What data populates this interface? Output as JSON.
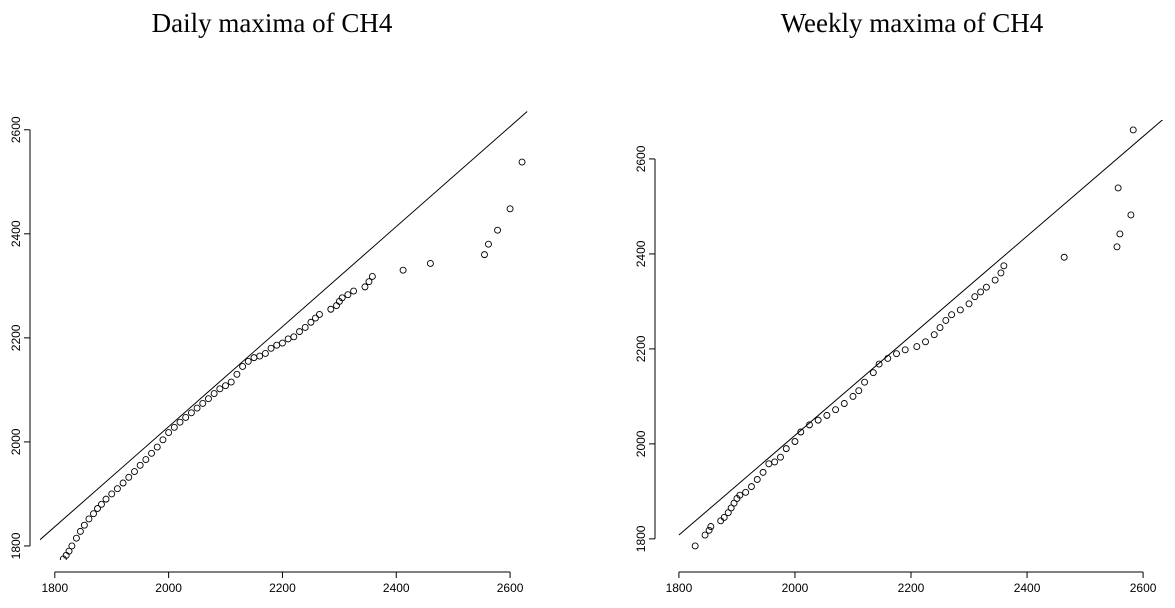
{
  "chart_data": [
    {
      "type": "scatter",
      "title": "Daily maxima of CH4",
      "color": "#000000",
      "xlim": [
        1774,
        2635
      ],
      "ylim": [
        1773,
        2638
      ],
      "xticks": [
        1800,
        2000,
        2200,
        2400,
        2600
      ],
      "yticks": [
        1800,
        2000,
        2200,
        2400,
        2600
      ],
      "reference_line": {
        "x": [
          1774,
          2630
        ],
        "y": [
          1812,
          2635
        ]
      },
      "x": [
        1815,
        1820,
        1825,
        1830,
        1838,
        1845,
        1852,
        1860,
        1868,
        1875,
        1882,
        1890,
        1900,
        1910,
        1920,
        1930,
        1940,
        1950,
        1960,
        1970,
        1980,
        1990,
        2000,
        2010,
        2020,
        2030,
        2040,
        2050,
        2060,
        2070,
        2080,
        2090,
        2100,
        2110,
        2120,
        2130,
        2140,
        2150,
        2160,
        2170,
        2180,
        2190,
        2200,
        2210,
        2220,
        2230,
        2240,
        2250,
        2258,
        2265,
        2285,
        2295,
        2300,
        2305,
        2315,
        2325,
        2345,
        2352,
        2358,
        2412,
        2460,
        2555,
        2562,
        2578,
        2600,
        2621
      ],
      "values": [
        1775,
        1782,
        1790,
        1800,
        1815,
        1828,
        1840,
        1852,
        1862,
        1872,
        1880,
        1890,
        1900,
        1910,
        1921,
        1932,
        1943,
        1955,
        1966,
        1978,
        1990,
        2004,
        2018,
        2028,
        2038,
        2047,
        2056,
        2065,
        2074,
        2083,
        2093,
        2102,
        2108,
        2115,
        2130,
        2145,
        2155,
        2162,
        2165,
        2170,
        2180,
        2186,
        2190,
        2198,
        2202,
        2212,
        2220,
        2230,
        2238,
        2245,
        2255,
        2262,
        2270,
        2277,
        2283,
        2290,
        2298,
        2308,
        2318,
        2330,
        2343,
        2360,
        2380,
        2407,
        2448,
        2538
      ]
    },
    {
      "type": "scatter",
      "title": "Weekly maxima of CH4",
      "color": "#000000",
      "xlim": [
        1776,
        2655
      ],
      "ylim": [
        1766,
        2682
      ],
      "xticks": [
        1800,
        2000,
        2200,
        2400,
        2600
      ],
      "yticks": [
        1800,
        2000,
        2200,
        2400,
        2600
      ],
      "reference_line": {
        "x": [
          1800,
          2655
        ],
        "y": [
          1808,
          2705
        ]
      },
      "x": [
        1828,
        1845,
        1852,
        1855,
        1872,
        1878,
        1885,
        1890,
        1895,
        1900,
        1905,
        1915,
        1925,
        1935,
        1945,
        1955,
        1965,
        1975,
        1985,
        2000,
        2010,
        2025,
        2040,
        2055,
        2070,
        2085,
        2100,
        2110,
        2120,
        2135,
        2145,
        2160,
        2175,
        2190,
        2210,
        2225,
        2240,
        2250,
        2260,
        2270,
        2285,
        2300,
        2310,
        2320,
        2330,
        2345,
        2355,
        2360,
        2464,
        2555,
        2560,
        2579,
        2557,
        2583
      ],
      "values": [
        1785,
        1808,
        1818,
        1826,
        1838,
        1845,
        1855,
        1865,
        1875,
        1885,
        1892,
        1898,
        1910,
        1925,
        1940,
        1958,
        1962,
        1972,
        1990,
        2005,
        2025,
        2040,
        2050,
        2060,
        2072,
        2085,
        2100,
        2112,
        2130,
        2150,
        2168,
        2180,
        2190,
        2198,
        2205,
        2215,
        2230,
        2245,
        2260,
        2272,
        2282,
        2295,
        2310,
        2320,
        2330,
        2345,
        2360,
        2375,
        2393,
        2415,
        2442,
        2482,
        2539,
        2661
      ]
    }
  ]
}
